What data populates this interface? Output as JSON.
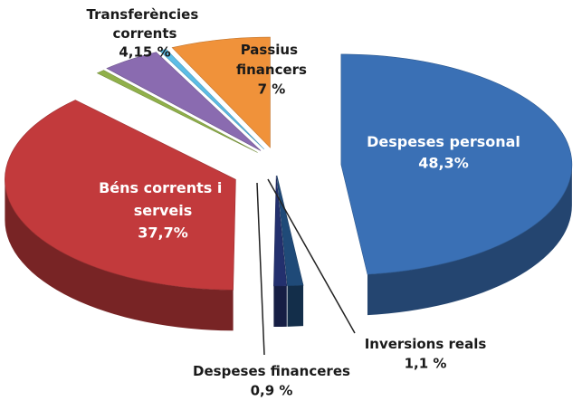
{
  "chart_data": {
    "type": "pie3d",
    "categories": [
      "Despeses personal",
      "Inversions reals",
      "Despeses financeres",
      "Béns corrents i serveis",
      null,
      "Transferències corrents",
      null,
      "Passius financers"
    ],
    "values": [
      48.3,
      1.1,
      0.9,
      37.7,
      0.6,
      4.15,
      0.5,
      7
    ],
    "value_labels": [
      "48,3%",
      "1,1 %",
      "0,9 %",
      "37,7%",
      null,
      "4,15 %",
      null,
      "7 %"
    ],
    "colors": [
      "#3a70b5",
      "#1f4a78",
      "#23306e",
      "#c23a3c",
      "#90b04a",
      "#8a6bb0",
      "#5cbde6",
      "#f0923a"
    ]
  }
}
